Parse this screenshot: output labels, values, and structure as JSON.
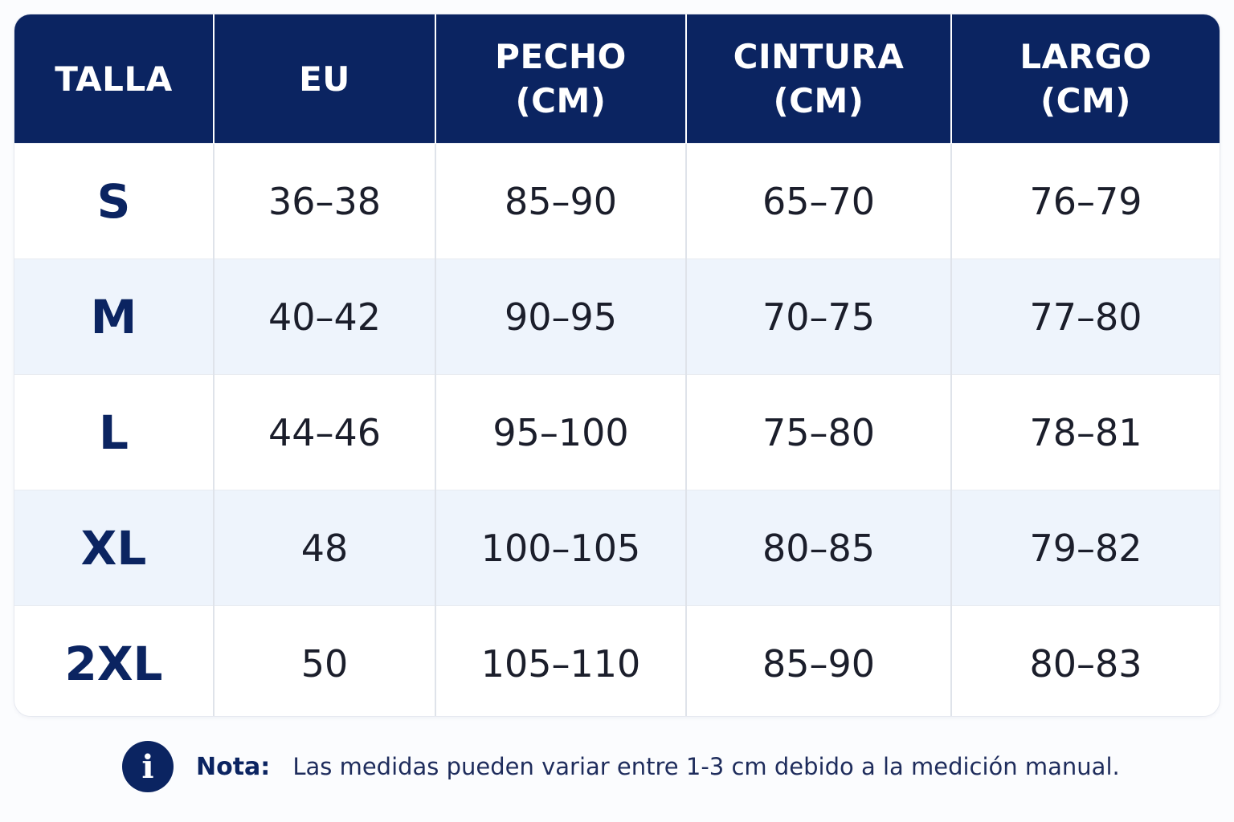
{
  "table": {
    "headers": [
      {
        "lines": [
          "TALLA"
        ]
      },
      {
        "lines": [
          "EU"
        ]
      },
      {
        "lines": [
          "PECHO",
          "(CM)"
        ]
      },
      {
        "lines": [
          "CINTURA",
          "(CM)"
        ]
      },
      {
        "lines": [
          "LARGO",
          "(CM)"
        ]
      }
    ],
    "rows": [
      [
        "S",
        "36–38",
        "85–90",
        "65–70",
        "76–79"
      ],
      [
        "M",
        "40–42",
        "90–95",
        "70–75",
        "77–80"
      ],
      [
        "L",
        "44–46",
        "95–100",
        "75–80",
        "78–81"
      ],
      [
        "XL",
        "48",
        "100–105",
        "80–85",
        "79–82"
      ],
      [
        "2XL",
        "50",
        "105–110",
        "85–90",
        "80–83"
      ]
    ]
  },
  "note": {
    "icon": "info-icon",
    "icon_glyph": "i",
    "label": "Nota:",
    "text": "Las medidas pueden variar entre 1-3 cm debido a la medición manual."
  },
  "colors": {
    "header_bg": "#0b2461",
    "row_alt_bg": "#eef4fc",
    "size_text": "#0b2461"
  }
}
